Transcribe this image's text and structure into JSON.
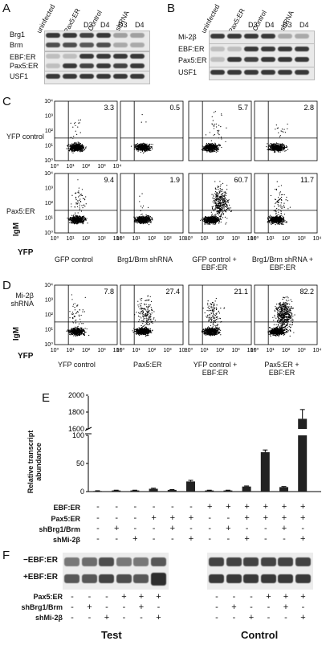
{
  "panels": {
    "A": "A",
    "B": "B",
    "C": "C",
    "D": "D",
    "E": "E",
    "F": "F"
  },
  "blotA": {
    "columns": [
      "uninfected",
      "Pax5:ER",
      "Control",
      "shRNA"
    ],
    "days": [
      "D3",
      "D4",
      "D3",
      "D4"
    ],
    "rows": [
      "Brg1",
      "Brm",
      "EBF:ER",
      "Pax5:ER",
      "USF1"
    ]
  },
  "blotB": {
    "columns": [
      "uninfected",
      "Pax5:ER",
      "Control",
      "shRNA"
    ],
    "days": [
      "D3",
      "D4",
      "D3",
      "D4"
    ],
    "rows": [
      "Mi-2β",
      "EBF:ER",
      "Pax5:ER",
      "USF1"
    ]
  },
  "flowC": {
    "row_labels": [
      "YFP control",
      "Pax5:ER"
    ],
    "col_labels": [
      "GFP control",
      "Brg1/Brm shRNA",
      "GFP control + EBF:ER",
      "Brg1/Brm shRNA + EBF:ER"
    ],
    "values_row1": [
      "3.3",
      "0.5",
      "5.7",
      "2.8"
    ],
    "values_row2": [
      "9.4",
      "1.9",
      "60.7",
      "11.7"
    ],
    "ylabel": "IgM",
    "xlabel": "YFP"
  },
  "flowD": {
    "row_label": "Mi-2β shRNA",
    "col_labels": [
      "YFP control",
      "Pax5:ER",
      "YFP control + EBF:ER",
      "Pax5:ER + EBF:ER"
    ],
    "values": [
      "7.8",
      "27.4",
      "21.1",
      "82.2"
    ],
    "ylabel": "IgM",
    "xlabel": "YFP"
  },
  "ticks": {
    "y": [
      "10⁰",
      "10¹",
      "10²",
      "10³",
      "10⁴"
    ],
    "x": [
      "10⁰",
      "10¹",
      "10²",
      "10³",
      "10⁴"
    ]
  },
  "chart_data": {
    "type": "bar",
    "ylabel": "Relative transcript abundance",
    "y_ticks_lower": [
      0,
      50,
      100
    ],
    "y_ticks_upper": [
      1600,
      1800,
      2000
    ],
    "values": [
      1,
      2,
      2,
      5,
      3,
      18,
      2,
      2,
      9,
      70,
      8,
      1720
    ],
    "errors": [
      0.5,
      0.5,
      0.5,
      1,
      0.5,
      2,
      0.5,
      0.5,
      1,
      4,
      1,
      110
    ],
    "conditions": {
      "EBF:ER": [
        "-",
        "-",
        "-",
        "-",
        "-",
        "-",
        "+",
        "+",
        "+",
        "+",
        "+",
        "+"
      ],
      "Pax5:ER": [
        "-",
        "-",
        "-",
        "+",
        "+",
        "+",
        "-",
        "-",
        "+",
        "+",
        "+",
        "+"
      ],
      "shBrg1/Brm": [
        "-",
        "+",
        "-",
        "-",
        "+",
        "-",
        "-",
        "+",
        "-",
        "-",
        "+",
        "-"
      ],
      "shMi-2β": [
        "-",
        "-",
        "+",
        "-",
        "-",
        "+",
        "-",
        "-",
        "+",
        "-",
        "-",
        "+"
      ]
    }
  },
  "panelF": {
    "rows": [
      "−EBF:ER",
      "+EBF:ER"
    ],
    "cond_labels": [
      "Pax5:ER",
      "shBrg1/Brm",
      "shMi-2β"
    ],
    "marks": [
      [
        "-",
        "-",
        "-",
        "+",
        "+",
        "+"
      ],
      [
        "-",
        "+",
        "-",
        "-",
        "+",
        "-"
      ],
      [
        "-",
        "-",
        "+",
        "-",
        "-",
        "+"
      ]
    ],
    "groups": [
      "Test",
      "Control"
    ]
  }
}
